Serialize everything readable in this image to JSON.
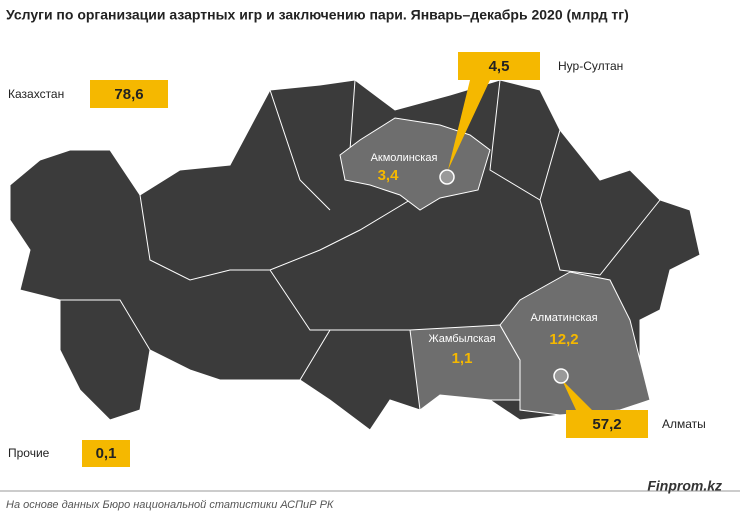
{
  "header": {
    "title": "Услуги по организации азартных игр и заключению пари. Январь–декабрь 2020 (млрд тг)"
  },
  "total": {
    "label": "Казахстан",
    "value": "78,6"
  },
  "regions": [
    {
      "name": "Акмолинская",
      "value": "3,4"
    },
    {
      "name": "Жамбылская",
      "value": "1,1"
    },
    {
      "name": "Алматинская",
      "value": "12,2"
    }
  ],
  "cities": [
    {
      "name": "Нур-Султан",
      "value": "4,5"
    },
    {
      "name": "Алматы",
      "value": "57,2"
    }
  ],
  "other": {
    "label": "Прочие",
    "value": "0,1"
  },
  "footer": {
    "source": "На основе данных Бюро национальной статистики АСПиР РК",
    "brand": "Finprom.kz"
  }
}
